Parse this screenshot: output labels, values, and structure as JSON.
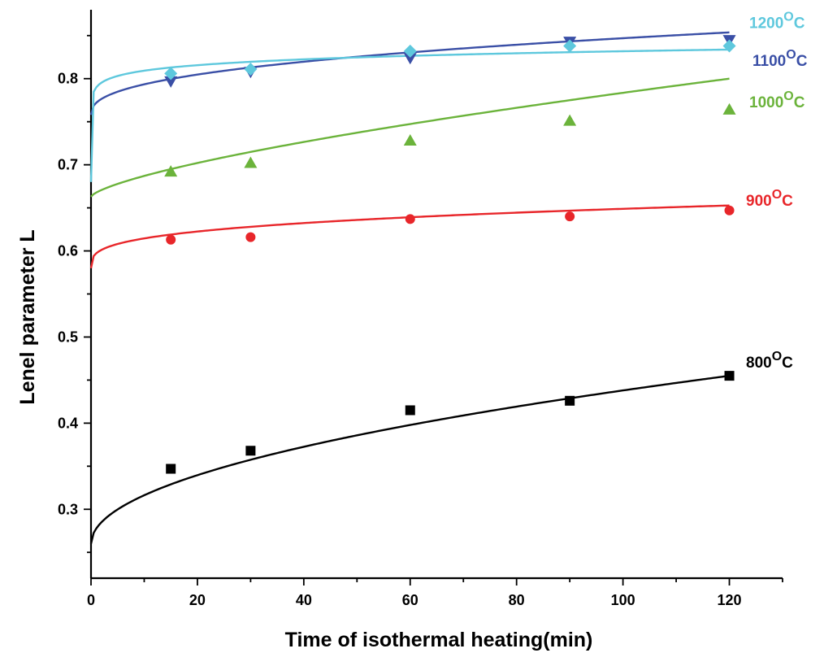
{
  "chart_data": {
    "type": "scatter",
    "title": "",
    "xlabel": "Time of isothermal heating(min)",
    "ylabel": "Lenel parameter L",
    "xlim": [
      0,
      130
    ],
    "ylim": [
      0.22,
      0.88
    ],
    "xticks": [
      0,
      20,
      40,
      60,
      80,
      100,
      120
    ],
    "yticks": [
      0.3,
      0.4,
      0.5,
      0.6,
      0.7,
      0.8
    ],
    "grid": false,
    "legend": "inline labels at right end of each series",
    "series": [
      {
        "name": "800°C",
        "label_main": "800",
        "label_deg": "O",
        "label_unit": "C",
        "color": "#000000",
        "marker": "square",
        "x": [
          15,
          30,
          60,
          90,
          120
        ],
        "y": [
          0.347,
          0.368,
          0.415,
          0.426,
          0.455
        ],
        "fit": {
          "a": 0.26,
          "b": 0.0178,
          "p": 0.5
        }
      },
      {
        "name": "900°C",
        "label_main": "900",
        "label_deg": "O",
        "label_unit": "C",
        "color": "#e8262a",
        "marker": "circle",
        "x": [
          15,
          30,
          60,
          90,
          120
        ],
        "y": [
          0.613,
          0.616,
          0.637,
          0.64,
          0.647
        ],
        "fit": {
          "a": 0.58,
          "b": 0.0173,
          "p": 0.3
        }
      },
      {
        "name": "1000°C",
        "label_main": "1000",
        "label_deg": "O",
        "label_unit": "C",
        "color": "#6bb33b",
        "marker": "triangle-up",
        "x": [
          15,
          30,
          60,
          90,
          120
        ],
        "y": [
          0.692,
          0.702,
          0.728,
          0.751,
          0.764
        ],
        "fit": {
          "a": 0.663,
          "b": 0.0048,
          "p": 0.7
        }
      },
      {
        "name": "1100°C",
        "label_main": "1100",
        "label_deg": "O",
        "label_unit": "C",
        "color": "#3a4fa6",
        "marker": "triangle-down",
        "x": [
          15,
          30,
          60,
          90,
          120
        ],
        "y": [
          0.797,
          0.808,
          0.824,
          0.843,
          0.845
        ],
        "fit": {
          "a": 0.758,
          "b": 0.0141,
          "p": 0.4
        }
      },
      {
        "name": "1200°C",
        "label_main": "1200",
        "label_deg": "O",
        "label_unit": "C",
        "color": "#5ec8dd",
        "marker": "diamond",
        "x": [
          15,
          30,
          60,
          90,
          120
        ],
        "y": [
          0.806,
          0.811,
          0.832,
          0.838,
          0.838
        ],
        "fit": {
          "a": 0.68,
          "b": 0.11,
          "p": 0.07
        }
      }
    ]
  }
}
